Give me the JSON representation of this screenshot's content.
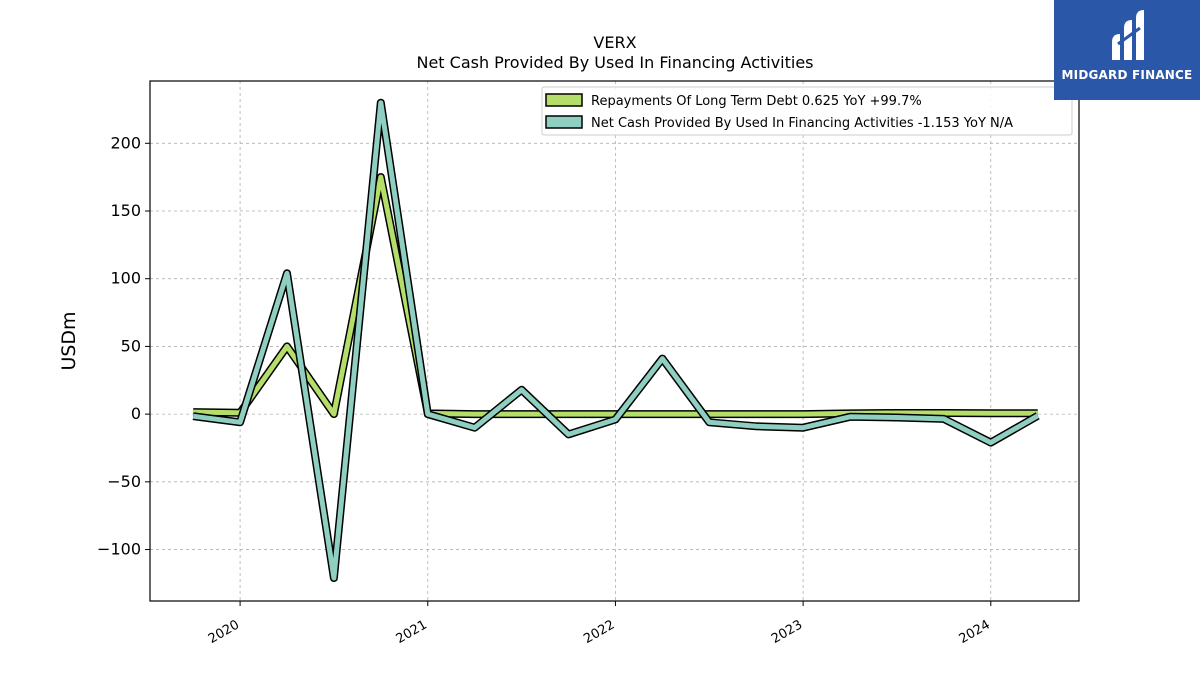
{
  "chart_data": {
    "type": "line",
    "title": "VERX",
    "subtitle": "Net Cash Provided By Used In Financing Activities",
    "ylabel": "USDm",
    "xlabel": "",
    "ylim": [
      -138,
      246
    ],
    "xlim": [
      2019.52,
      2024.47
    ],
    "yticks": [
      -100,
      -50,
      0,
      50,
      100,
      150,
      200
    ],
    "ytick_labels": [
      "−100",
      "−50",
      "0",
      "50",
      "100",
      "150",
      "200"
    ],
    "xticks": [
      2020,
      2021,
      2022,
      2023,
      2024
    ],
    "xtick_labels": [
      "2020",
      "2021",
      "2022",
      "2023",
      "2024"
    ],
    "grid": true,
    "legend_position": "top-right",
    "x": [
      2019.75,
      2020.0,
      2020.25,
      2020.5,
      2020.75,
      2021.0,
      2021.25,
      2021.5,
      2021.75,
      2022.0,
      2022.25,
      2022.5,
      2022.75,
      2023.0,
      2023.25,
      2023.5,
      2023.75,
      2024.0,
      2024.25
    ],
    "series": [
      {
        "name": "Repayments Of Long Term Debt",
        "legend_label": "Repayments Of Long Term Debt  0.625 YoY +99.7%",
        "color": "#b5dd6a",
        "values": [
          1.5,
          1.0,
          50.0,
          0.0,
          175.0,
          0.5,
          0.0,
          0.0,
          0.0,
          0.0,
          0.0,
          0.0,
          0.0,
          0.0,
          0.5,
          0.8,
          0.8,
          0.6,
          0.6
        ]
      },
      {
        "name": "Net Cash Provided By Used In Financing Activities",
        "legend_label": "Net Cash Provided By Used In Financing Activities  -1.153 YoY N/A",
        "color": "#8ecfc2",
        "values": [
          -1.5,
          -6.0,
          104.0,
          -121.0,
          230.0,
          0.0,
          -10.0,
          18.0,
          -15.0,
          -4.0,
          41.0,
          -6.0,
          -9.0,
          -10.0,
          -2.0,
          -2.5,
          -3.5,
          -21.0,
          -1.2
        ]
      }
    ]
  },
  "logo": {
    "text": "MIDGARD FINANCE",
    "background": "#2b57a8"
  }
}
